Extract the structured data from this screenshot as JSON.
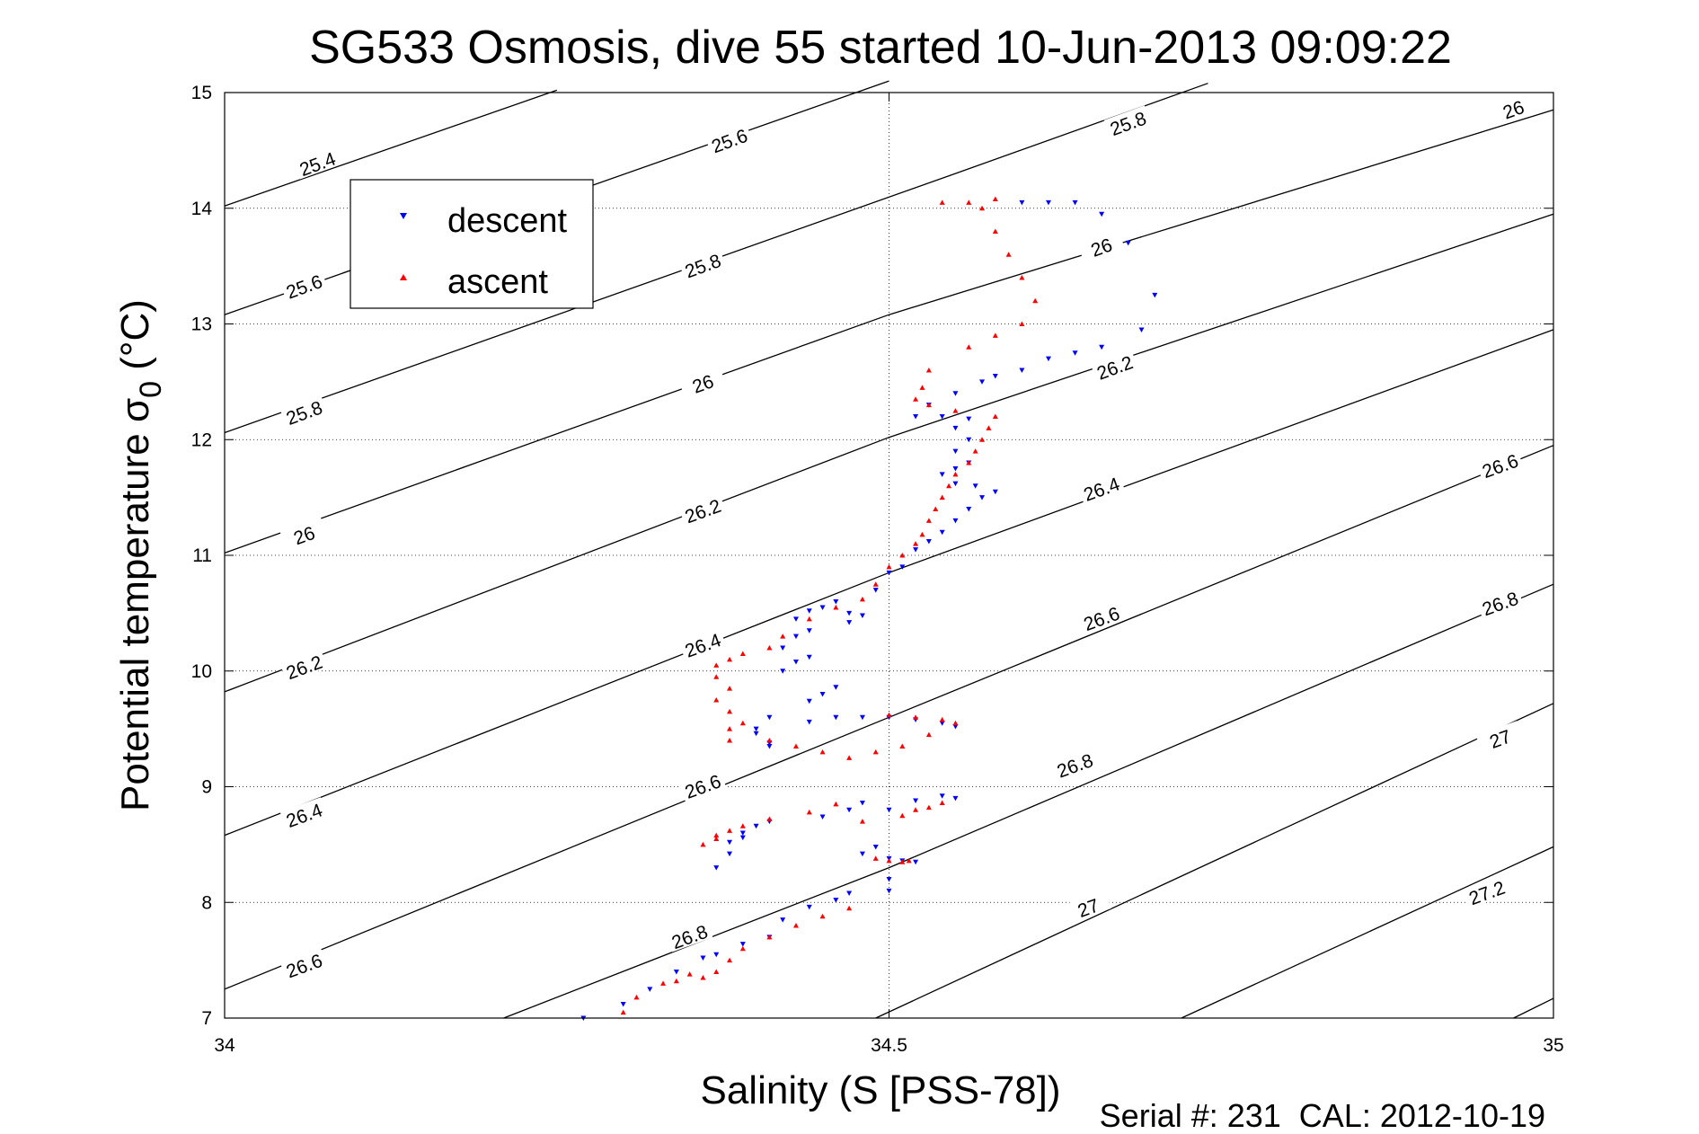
{
  "chart_data": {
    "type": "scatter",
    "title": "SG533 Osmosis, dive 55 started 10-Jun-2013 09:09:22",
    "xlabel": "Salinity (S [PSS-78])",
    "ylabel_main": "Potential temperature σ",
    "ylabel_sub": "0",
    "ylabel_unit": " (°C)",
    "xlim": [
      34,
      35
    ],
    "ylim": [
      7,
      15
    ],
    "xticks": [
      34,
      34.5,
      35
    ],
    "xtick_labels": [
      "34",
      "34.5",
      "35"
    ],
    "yticks": [
      7,
      8,
      9,
      10,
      11,
      12,
      13,
      14,
      15
    ],
    "ytick_labels": [
      "7",
      "8",
      "9",
      "10",
      "11",
      "12",
      "13",
      "14",
      "15"
    ],
    "grid": "dotted",
    "legend_position": "upper-left",
    "colors": {
      "descent": "#0000ff",
      "ascent": "#ff0000",
      "contour": "#000000"
    },
    "contours": [
      {
        "value": 25.4,
        "label": "25.4",
        "points": [
          [
            34.0,
            14.02
          ],
          [
            34.25,
            15.02
          ]
        ]
      },
      {
        "value": 25.6,
        "label": "25.6",
        "points": [
          [
            34.0,
            13.08
          ],
          [
            34.5,
            15.1
          ]
        ]
      },
      {
        "value": 25.8,
        "label": "25.8",
        "points": [
          [
            34.0,
            12.06
          ],
          [
            34.55,
            14.3
          ],
          [
            34.74,
            15.08
          ]
        ]
      },
      {
        "value": 26.0,
        "label": "26",
        "points": [
          [
            34.0,
            11.02
          ],
          [
            34.5,
            13.08
          ],
          [
            35.0,
            14.85
          ]
        ]
      },
      {
        "value": 26.2,
        "label": "26.2",
        "points": [
          [
            34.0,
            9.82
          ],
          [
            34.5,
            12.02
          ],
          [
            35.0,
            13.95
          ]
        ]
      },
      {
        "value": 26.4,
        "label": "26.4",
        "points": [
          [
            34.0,
            8.58
          ],
          [
            34.5,
            10.85
          ],
          [
            35.0,
            12.95
          ]
        ]
      },
      {
        "value": 26.6,
        "label": "26.6",
        "points": [
          [
            34.0,
            7.25
          ],
          [
            34.5,
            9.6
          ],
          [
            35.0,
            11.95
          ]
        ]
      },
      {
        "value": 26.8,
        "label": "26.8",
        "points": [
          [
            34.21,
            7.0
          ],
          [
            34.5,
            8.3
          ],
          [
            35.0,
            10.75
          ]
        ]
      },
      {
        "value": 27.0,
        "label": "27",
        "points": [
          [
            34.49,
            7.0
          ],
          [
            35.0,
            9.72
          ]
        ]
      },
      {
        "value": 27.2,
        "label": "27.2",
        "points": [
          [
            34.72,
            7.0
          ],
          [
            35.0,
            8.48
          ]
        ]
      },
      {
        "value": 27.4,
        "label": "",
        "points": [
          [
            34.97,
            7.0
          ],
          [
            35.0,
            7.17
          ]
        ]
      }
    ],
    "contour_labels": [
      {
        "text": "25.4",
        "x": 34.07,
        "y": 14.38
      },
      {
        "text": "25.6",
        "x": 34.38,
        "y": 14.58
      },
      {
        "text": "25.8",
        "x": 34.68,
        "y": 14.73
      },
      {
        "text": "26",
        "x": 34.97,
        "y": 14.85
      },
      {
        "text": "25.6",
        "x": 34.06,
        "y": 13.32
      },
      {
        "text": "25.8",
        "x": 34.36,
        "y": 13.5
      },
      {
        "text": "26",
        "x": 34.66,
        "y": 13.66
      },
      {
        "text": "25.8",
        "x": 34.06,
        "y": 12.23
      },
      {
        "text": "26",
        "x": 34.36,
        "y": 12.48
      },
      {
        "text": "26.2",
        "x": 34.67,
        "y": 12.62
      },
      {
        "text": "26",
        "x": 34.06,
        "y": 11.17
      },
      {
        "text": "26.2",
        "x": 34.36,
        "y": 11.38
      },
      {
        "text": "26.4",
        "x": 34.66,
        "y": 11.57
      },
      {
        "text": "26.6",
        "x": 34.96,
        "y": 11.77
      },
      {
        "text": "26.2",
        "x": 34.06,
        "y": 10.03
      },
      {
        "text": "26.4",
        "x": 34.36,
        "y": 10.22
      },
      {
        "text": "26.6",
        "x": 34.66,
        "y": 10.45
      },
      {
        "text": "26.8",
        "x": 34.96,
        "y": 10.58
      },
      {
        "text": "26.4",
        "x": 34.06,
        "y": 8.75
      },
      {
        "text": "26.6",
        "x": 34.36,
        "y": 9.0
      },
      {
        "text": "26.8",
        "x": 34.64,
        "y": 9.18
      },
      {
        "text": "27",
        "x": 34.96,
        "y": 9.41
      },
      {
        "text": "26.6",
        "x": 34.06,
        "y": 7.45
      },
      {
        "text": "26.8",
        "x": 34.35,
        "y": 7.7
      },
      {
        "text": "27",
        "x": 34.65,
        "y": 7.95
      },
      {
        "text": "27.2",
        "x": 34.95,
        "y": 8.08
      }
    ],
    "series": [
      {
        "name": "descent",
        "marker": "triangle-down",
        "points": [
          [
            34.27,
            7.0
          ],
          [
            34.3,
            7.12
          ],
          [
            34.32,
            7.25
          ],
          [
            34.34,
            7.4
          ],
          [
            34.36,
            7.52
          ],
          [
            34.37,
            7.55
          ],
          [
            34.39,
            7.64
          ],
          [
            34.41,
            7.7
          ],
          [
            34.42,
            7.85
          ],
          [
            34.44,
            7.96
          ],
          [
            34.46,
            8.02
          ],
          [
            34.47,
            8.08
          ],
          [
            34.37,
            8.3
          ],
          [
            34.38,
            8.42
          ],
          [
            34.38,
            8.52
          ],
          [
            34.39,
            8.56
          ],
          [
            34.39,
            8.6
          ],
          [
            34.4,
            8.66
          ],
          [
            34.41,
            8.7
          ],
          [
            34.45,
            8.74
          ],
          [
            34.47,
            8.8
          ],
          [
            34.48,
            8.86
          ],
          [
            34.5,
            8.8
          ],
          [
            34.52,
            8.88
          ],
          [
            34.54,
            8.92
          ],
          [
            34.55,
            8.9
          ],
          [
            34.48,
            8.42
          ],
          [
            34.49,
            8.48
          ],
          [
            34.5,
            8.38
          ],
          [
            34.51,
            8.36
          ],
          [
            34.52,
            8.35
          ],
          [
            34.5,
            8.2
          ],
          [
            34.5,
            8.1
          ],
          [
            34.41,
            9.38
          ],
          [
            34.41,
            9.35
          ],
          [
            34.4,
            9.46
          ],
          [
            34.4,
            9.5
          ],
          [
            34.41,
            9.6
          ],
          [
            34.44,
            9.56
          ],
          [
            34.46,
            9.6
          ],
          [
            34.48,
            9.6
          ],
          [
            34.5,
            9.6
          ],
          [
            34.52,
            9.58
          ],
          [
            34.54,
            9.55
          ],
          [
            34.55,
            9.52
          ],
          [
            34.44,
            9.74
          ],
          [
            34.45,
            9.8
          ],
          [
            34.46,
            9.86
          ],
          [
            34.42,
            10.0
          ],
          [
            34.43,
            10.08
          ],
          [
            34.44,
            10.12
          ],
          [
            34.42,
            10.2
          ],
          [
            34.43,
            10.3
          ],
          [
            34.44,
            10.35
          ],
          [
            34.43,
            10.45
          ],
          [
            34.44,
            10.52
          ],
          [
            34.45,
            10.55
          ],
          [
            34.46,
            10.6
          ],
          [
            34.47,
            10.5
          ],
          [
            34.48,
            10.48
          ],
          [
            34.47,
            10.42
          ],
          [
            34.49,
            10.7
          ],
          [
            34.5,
            10.85
          ],
          [
            34.51,
            10.9
          ],
          [
            34.52,
            11.05
          ],
          [
            34.53,
            11.12
          ],
          [
            34.54,
            11.2
          ],
          [
            34.55,
            11.3
          ],
          [
            34.56,
            11.4
          ],
          [
            34.57,
            11.5
          ],
          [
            34.58,
            11.55
          ],
          [
            34.565,
            11.6
          ],
          [
            34.55,
            11.62
          ],
          [
            34.54,
            11.7
          ],
          [
            34.55,
            11.75
          ],
          [
            34.56,
            11.8
          ],
          [
            34.55,
            11.9
          ],
          [
            34.56,
            12.0
          ],
          [
            34.55,
            12.1
          ],
          [
            34.56,
            12.18
          ],
          [
            34.54,
            12.2
          ],
          [
            34.52,
            12.2
          ],
          [
            34.53,
            12.3
          ],
          [
            34.55,
            12.4
          ],
          [
            34.57,
            12.5
          ],
          [
            34.58,
            12.55
          ],
          [
            34.6,
            12.6
          ],
          [
            34.62,
            12.7
          ],
          [
            34.64,
            12.75
          ],
          [
            34.66,
            12.8
          ],
          [
            34.69,
            12.95
          ],
          [
            34.7,
            13.25
          ],
          [
            34.68,
            13.7
          ],
          [
            34.66,
            13.95
          ],
          [
            34.64,
            14.05
          ],
          [
            34.62,
            14.05
          ],
          [
            34.6,
            14.05
          ]
        ]
      },
      {
        "name": "ascent",
        "marker": "triangle-up",
        "points": [
          [
            34.3,
            7.05
          ],
          [
            34.31,
            7.18
          ],
          [
            34.33,
            7.3
          ],
          [
            34.34,
            7.32
          ],
          [
            34.35,
            7.38
          ],
          [
            34.36,
            7.35
          ],
          [
            34.37,
            7.4
          ],
          [
            34.38,
            7.5
          ],
          [
            34.39,
            7.6
          ],
          [
            34.41,
            7.7
          ],
          [
            34.43,
            7.8
          ],
          [
            34.45,
            7.88
          ],
          [
            34.47,
            7.95
          ],
          [
            34.36,
            8.5
          ],
          [
            34.37,
            8.55
          ],
          [
            34.37,
            8.58
          ],
          [
            34.38,
            8.62
          ],
          [
            34.39,
            8.66
          ],
          [
            34.41,
            8.72
          ],
          [
            34.44,
            8.78
          ],
          [
            34.46,
            8.85
          ],
          [
            34.48,
            8.7
          ],
          [
            34.51,
            8.75
          ],
          [
            34.52,
            8.8
          ],
          [
            34.53,
            8.82
          ],
          [
            34.54,
            8.86
          ],
          [
            34.49,
            8.38
          ],
          [
            34.5,
            8.36
          ],
          [
            34.51,
            8.35
          ],
          [
            34.515,
            8.36
          ],
          [
            34.38,
            9.4
          ],
          [
            34.38,
            9.5
          ],
          [
            34.39,
            9.55
          ],
          [
            34.38,
            9.65
          ],
          [
            34.37,
            9.75
          ],
          [
            34.38,
            9.85
          ],
          [
            34.37,
            9.95
          ],
          [
            34.37,
            10.05
          ],
          [
            34.38,
            10.1
          ],
          [
            34.39,
            10.15
          ],
          [
            34.41,
            10.2
          ],
          [
            34.42,
            10.3
          ],
          [
            34.44,
            10.45
          ],
          [
            34.46,
            10.55
          ],
          [
            34.48,
            10.62
          ],
          [
            34.49,
            10.75
          ],
          [
            34.5,
            10.9
          ],
          [
            34.51,
            11.0
          ],
          [
            34.52,
            11.1
          ],
          [
            34.525,
            11.18
          ],
          [
            34.53,
            11.3
          ],
          [
            34.535,
            11.4
          ],
          [
            34.54,
            11.5
          ],
          [
            34.545,
            11.6
          ],
          [
            34.55,
            11.7
          ],
          [
            34.56,
            11.8
          ],
          [
            34.565,
            11.9
          ],
          [
            34.57,
            12.0
          ],
          [
            34.575,
            12.1
          ],
          [
            34.58,
            12.2
          ],
          [
            34.55,
            12.25
          ],
          [
            34.53,
            12.3
          ],
          [
            34.52,
            12.35
          ],
          [
            34.525,
            12.45
          ],
          [
            34.53,
            12.6
          ],
          [
            34.56,
            12.8
          ],
          [
            34.58,
            12.9
          ],
          [
            34.6,
            13.0
          ],
          [
            34.61,
            13.2
          ],
          [
            34.6,
            13.4
          ],
          [
            34.59,
            13.6
          ],
          [
            34.58,
            13.8
          ],
          [
            34.57,
            14.0
          ],
          [
            34.54,
            14.05
          ],
          [
            34.56,
            14.05
          ],
          [
            34.58,
            14.08
          ],
          [
            34.5,
            9.62
          ],
          [
            34.52,
            9.6
          ],
          [
            34.54,
            9.58
          ],
          [
            34.55,
            9.55
          ],
          [
            34.53,
            9.45
          ],
          [
            34.51,
            9.35
          ],
          [
            34.49,
            9.3
          ],
          [
            34.47,
            9.25
          ],
          [
            34.45,
            9.3
          ],
          [
            34.43,
            9.35
          ],
          [
            34.41,
            9.4
          ]
        ]
      }
    ]
  },
  "legend": {
    "items": [
      {
        "label": "descent",
        "color": "#0000ff",
        "marker": "triangle-down"
      },
      {
        "label": "ascent",
        "color": "#ff0000",
        "marker": "triangle-up"
      }
    ]
  },
  "footer": {
    "serial": "Serial #: 231  CAL: 2012-10-19"
  }
}
